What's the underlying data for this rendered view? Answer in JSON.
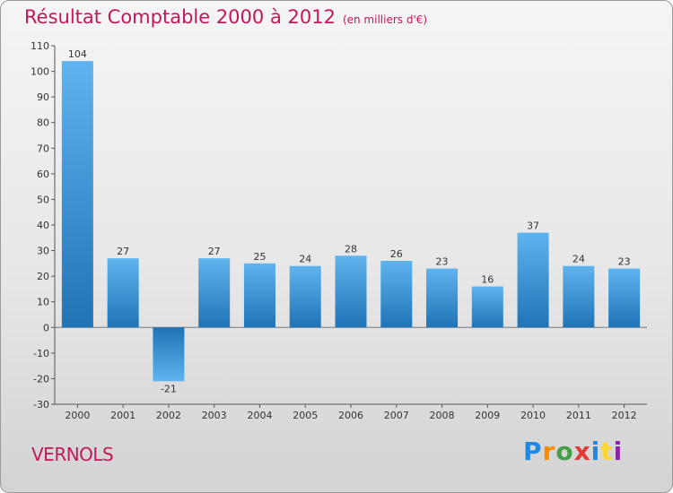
{
  "header": {
    "title": "Résultat Comptable 2000 à 2012",
    "subtitle": "(en milliers d'€)"
  },
  "footer": {
    "place": "VERNOLS",
    "brand": [
      "P",
      "r",
      "o",
      "x",
      "i",
      "t",
      "i"
    ]
  },
  "colors": {
    "title": "#c2185b",
    "bar_top": "#5fb3ee",
    "bar_bottom": "#1f74b8"
  },
  "chart_data": {
    "type": "bar",
    "title": "Résultat Comptable 2000 à 2012",
    "ylabel": "en milliers d'€",
    "xlabel": "",
    "categories": [
      "2000",
      "2001",
      "2002",
      "2003",
      "2004",
      "2005",
      "2006",
      "2007",
      "2008",
      "2009",
      "2010",
      "2011",
      "2012"
    ],
    "values": [
      104,
      27,
      -21,
      27,
      25,
      24,
      28,
      26,
      23,
      16,
      37,
      24,
      23
    ],
    "ylim": [
      -30,
      110
    ],
    "yticks": [
      -30,
      -20,
      -10,
      0,
      10,
      20,
      30,
      40,
      50,
      60,
      70,
      80,
      90,
      100,
      110
    ],
    "grid": false,
    "legend": "none"
  }
}
